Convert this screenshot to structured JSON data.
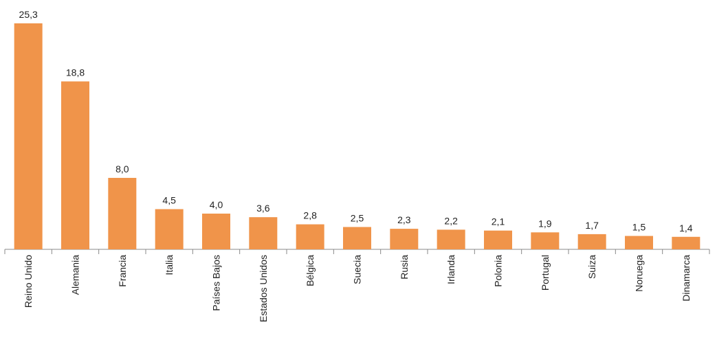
{
  "chart_data": {
    "type": "bar",
    "categories": [
      "Reino Unido",
      "Alemania",
      "Francia",
      "Italia",
      "Países Bajos",
      "Estados Unidos",
      "Bélgica",
      "Suecia",
      "Rusia",
      "Irlanda",
      "Polonia",
      "Portugal",
      "Suiza",
      "Noruega",
      "Dinamarca"
    ],
    "values": [
      25.3,
      18.8,
      8.0,
      4.5,
      4.0,
      3.6,
      2.8,
      2.5,
      2.3,
      2.2,
      2.1,
      1.9,
      1.7,
      1.5,
      1.4
    ],
    "value_labels": [
      "25,3",
      "18,8",
      "8,0",
      "4,5",
      "4,0",
      "3,6",
      "2,8",
      "2,5",
      "2,3",
      "2,2",
      "2,1",
      "1,9",
      "1,7",
      "1,5",
      "1,4"
    ],
    "color": "#f0944a"
  }
}
